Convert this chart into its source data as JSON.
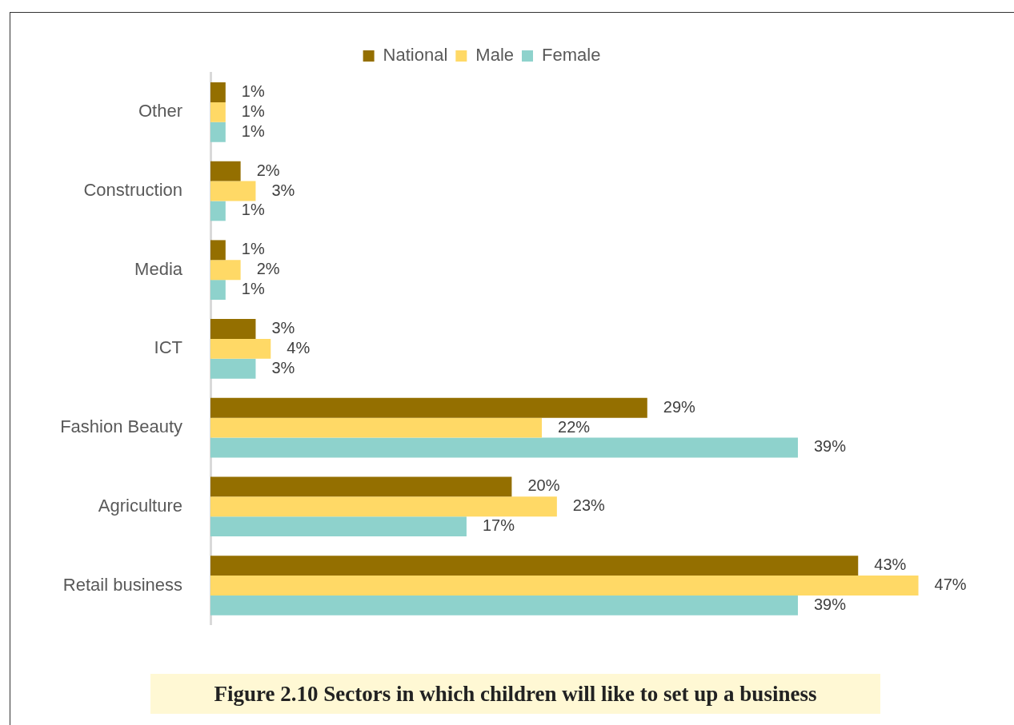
{
  "chart_data": {
    "type": "bar",
    "orientation": "horizontal",
    "title": "Figure 2.10 Sectors in which children will like to set up a business",
    "categories": [
      "Other",
      "Construction",
      "Media",
      "ICT",
      "Fashion Beauty",
      "Agriculture",
      "Retail business"
    ],
    "series": [
      {
        "name": "National",
        "color": "#946f00",
        "values": [
          1,
          2,
          1,
          3,
          29,
          20,
          43
        ],
        "value_labels": [
          "1%",
          "2%",
          "1%",
          "3%",
          "29%",
          "20%",
          "43%"
        ]
      },
      {
        "name": "Male",
        "color": "#ffd966",
        "values": [
          1,
          3,
          2,
          4,
          22,
          23,
          47
        ],
        "value_labels": [
          "1%",
          "3%",
          "2%",
          "4%",
          "22%",
          "23%",
          "47%"
        ]
      },
      {
        "name": "Female",
        "color": "#8ed2cc",
        "values": [
          1,
          1,
          1,
          3,
          39,
          17,
          39
        ],
        "value_labels": [
          "1%",
          "1%",
          "1%",
          "3%",
          "39%",
          "17%",
          "39%"
        ]
      }
    ],
    "legend": "top",
    "tick_labels": "y"
  }
}
